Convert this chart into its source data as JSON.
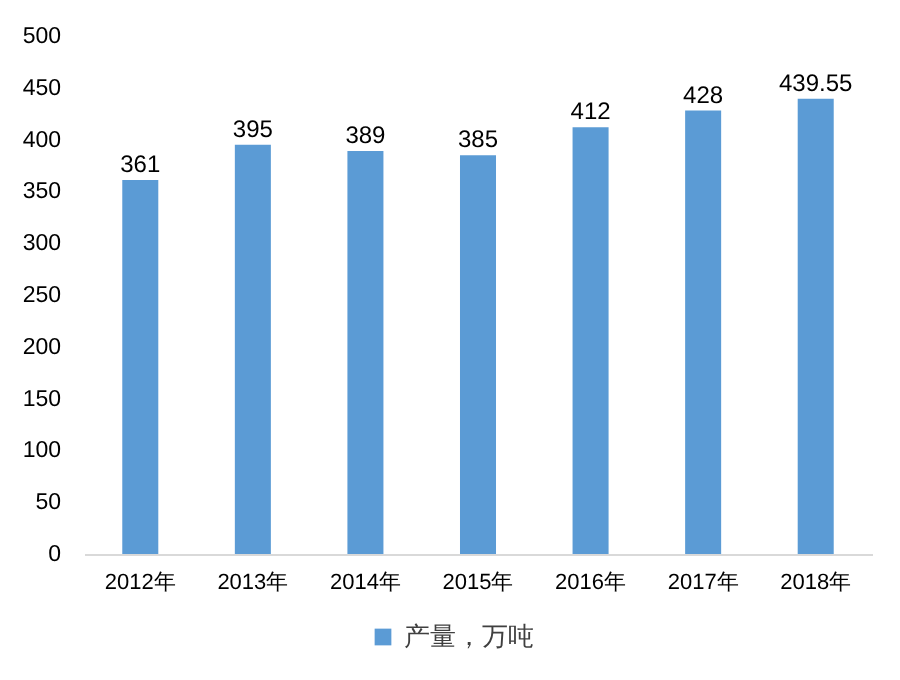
{
  "chart_data": {
    "type": "bar",
    "categories": [
      "2012年",
      "2013年",
      "2014年",
      "2015年",
      "2016年",
      "2017年",
      "2018年"
    ],
    "series": [
      {
        "name": "产量，万吨",
        "color": "#5b9bd5",
        "values": [
          361,
          395,
          389,
          385,
          412,
          428,
          439.55
        ]
      }
    ],
    "ylim": [
      0,
      500
    ],
    "yticks": [
      0,
      50,
      100,
      150,
      200,
      250,
      300,
      350,
      400,
      450,
      500
    ],
    "grid": false,
    "legend": "bottom",
    "data_labels": true
  }
}
